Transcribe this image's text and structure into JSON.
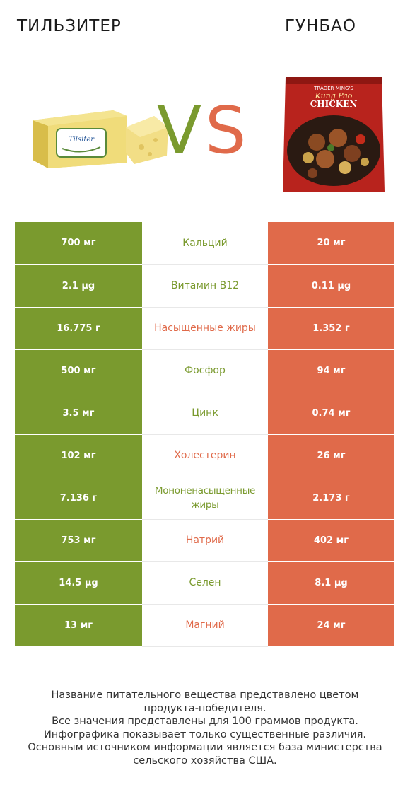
{
  "header": {
    "left_title": "ТИЛЬЗИТЕР",
    "right_title": "ГУНБАО",
    "vs_v": "V",
    "vs_s": "S"
  },
  "cheese_image": {
    "label": "Tilsiter"
  },
  "kungpao_image": {
    "brand": "TRADER MING'S",
    "line1": "Kung Pao",
    "line2": "CHICKEN"
  },
  "colors": {
    "left": "#7a9a2e",
    "right": "#e06a4a"
  },
  "rows": [
    {
      "left": "700 мг",
      "nutrient": "Кальций",
      "right": "20 мг",
      "winner": "left"
    },
    {
      "left": "2.1 µg",
      "nutrient": "Витамин B12",
      "right": "0.11 µg",
      "winner": "left"
    },
    {
      "left": "16.775 г",
      "nutrient": "Насыщенные жиры",
      "right": "1.352 г",
      "winner": "right"
    },
    {
      "left": "500 мг",
      "nutrient": "Фосфор",
      "right": "94 мг",
      "winner": "left"
    },
    {
      "left": "3.5 мг",
      "nutrient": "Цинк",
      "right": "0.74 мг",
      "winner": "left"
    },
    {
      "left": "102 мг",
      "nutrient": "Холестерин",
      "right": "26 мг",
      "winner": "right"
    },
    {
      "left": "7.136 г",
      "nutrient": "Мононенасыщенные жиры",
      "right": "2.173 г",
      "winner": "left"
    },
    {
      "left": "753 мг",
      "nutrient": "Натрий",
      "right": "402 мг",
      "winner": "right"
    },
    {
      "left": "14.5 µg",
      "nutrient": "Селен",
      "right": "8.1 µg",
      "winner": "left"
    },
    {
      "left": "13 мг",
      "nutrient": "Магний",
      "right": "24 мг",
      "winner": "right"
    }
  ],
  "footnote": {
    "line1": "Название питательного вещества представлено цветом",
    "line2": "продукта-победителя.",
    "line3": "Все значения представлены для 100 граммов продукта.",
    "line4": "Инфографика показывает только существенные различия.",
    "line5": "Основным источником информации является база министерства",
    "line6": "сельского хозяйства США."
  }
}
